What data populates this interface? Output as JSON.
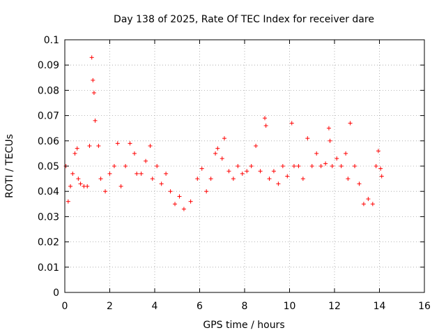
{
  "chart_data": {
    "type": "scatter",
    "title": "Day 138 of 2025, Rate Of TEC Index for receiver dare",
    "xlabel": "GPS time / hours",
    "ylabel": "ROTI / TECUs",
    "xlim": [
      0,
      16
    ],
    "ylim": [
      0,
      0.1
    ],
    "x_ticks": [
      0,
      2,
      4,
      6,
      8,
      10,
      12,
      14,
      16
    ],
    "y_ticks": [
      0,
      0.01,
      0.02,
      0.03,
      0.04,
      0.05,
      0.06,
      0.07,
      0.08,
      0.09,
      0.1
    ],
    "x_tick_labels": [
      "0",
      "2",
      "4",
      "6",
      "8",
      "10",
      "12",
      "14",
      "16"
    ],
    "y_tick_labels": [
      "0",
      "0.01",
      "0.02",
      "0.03",
      "0.04",
      "0.05",
      "0.06",
      "0.07",
      "0.08",
      "0.09",
      "0.1"
    ],
    "grid": true,
    "marker": "+",
    "marker_color": "#ff0000",
    "series": [
      {
        "x": [
          0.05,
          0.15,
          0.25,
          0.35,
          0.45,
          0.55,
          0.6,
          0.7,
          0.85,
          1.0,
          1.1,
          1.2,
          1.25,
          1.3,
          1.35,
          1.5,
          1.6,
          1.8,
          2.0,
          2.2,
          2.35,
          2.5,
          2.7,
          2.9,
          3.1,
          3.2,
          3.4,
          3.6,
          3.8,
          3.9,
          4.1,
          4.3,
          4.5,
          4.7,
          4.9,
          5.1,
          5.3,
          5.6,
          5.9,
          6.1,
          6.3,
          6.5,
          6.7,
          6.8,
          7.0,
          7.1,
          7.3,
          7.5,
          7.7,
          7.9,
          8.1,
          8.3,
          8.5,
          8.7,
          8.9,
          8.95,
          9.1,
          9.3,
          9.5,
          9.7,
          9.9,
          10.1,
          10.2,
          10.4,
          10.6,
          10.8,
          11.0,
          11.2,
          11.4,
          11.6,
          11.75,
          11.8,
          11.9,
          12.1,
          12.3,
          12.5,
          12.6,
          12.7,
          12.9,
          13.1,
          13.3,
          13.5,
          13.7,
          13.85,
          13.95,
          14.05,
          14.1
        ],
        "y": [
          0.05,
          0.036,
          0.042,
          0.047,
          0.055,
          0.057,
          0.045,
          0.043,
          0.042,
          0.042,
          0.058,
          0.093,
          0.084,
          0.079,
          0.068,
          0.058,
          0.045,
          0.04,
          0.047,
          0.05,
          0.059,
          0.042,
          0.05,
          0.059,
          0.055,
          0.047,
          0.047,
          0.052,
          0.058,
          0.045,
          0.05,
          0.043,
          0.047,
          0.04,
          0.035,
          0.038,
          0.033,
          0.036,
          0.045,
          0.049,
          0.04,
          0.045,
          0.055,
          0.057,
          0.053,
          0.061,
          0.048,
          0.045,
          0.05,
          0.047,
          0.048,
          0.05,
          0.058,
          0.048,
          0.069,
          0.066,
          0.045,
          0.048,
          0.043,
          0.05,
          0.046,
          0.067,
          0.05,
          0.05,
          0.045,
          0.061,
          0.05,
          0.055,
          0.05,
          0.051,
          0.065,
          0.06,
          0.05,
          0.053,
          0.05,
          0.055,
          0.045,
          0.067,
          0.05,
          0.043,
          0.035,
          0.037,
          0.035,
          0.05,
          0.056,
          0.049,
          0.046
        ]
      }
    ]
  }
}
